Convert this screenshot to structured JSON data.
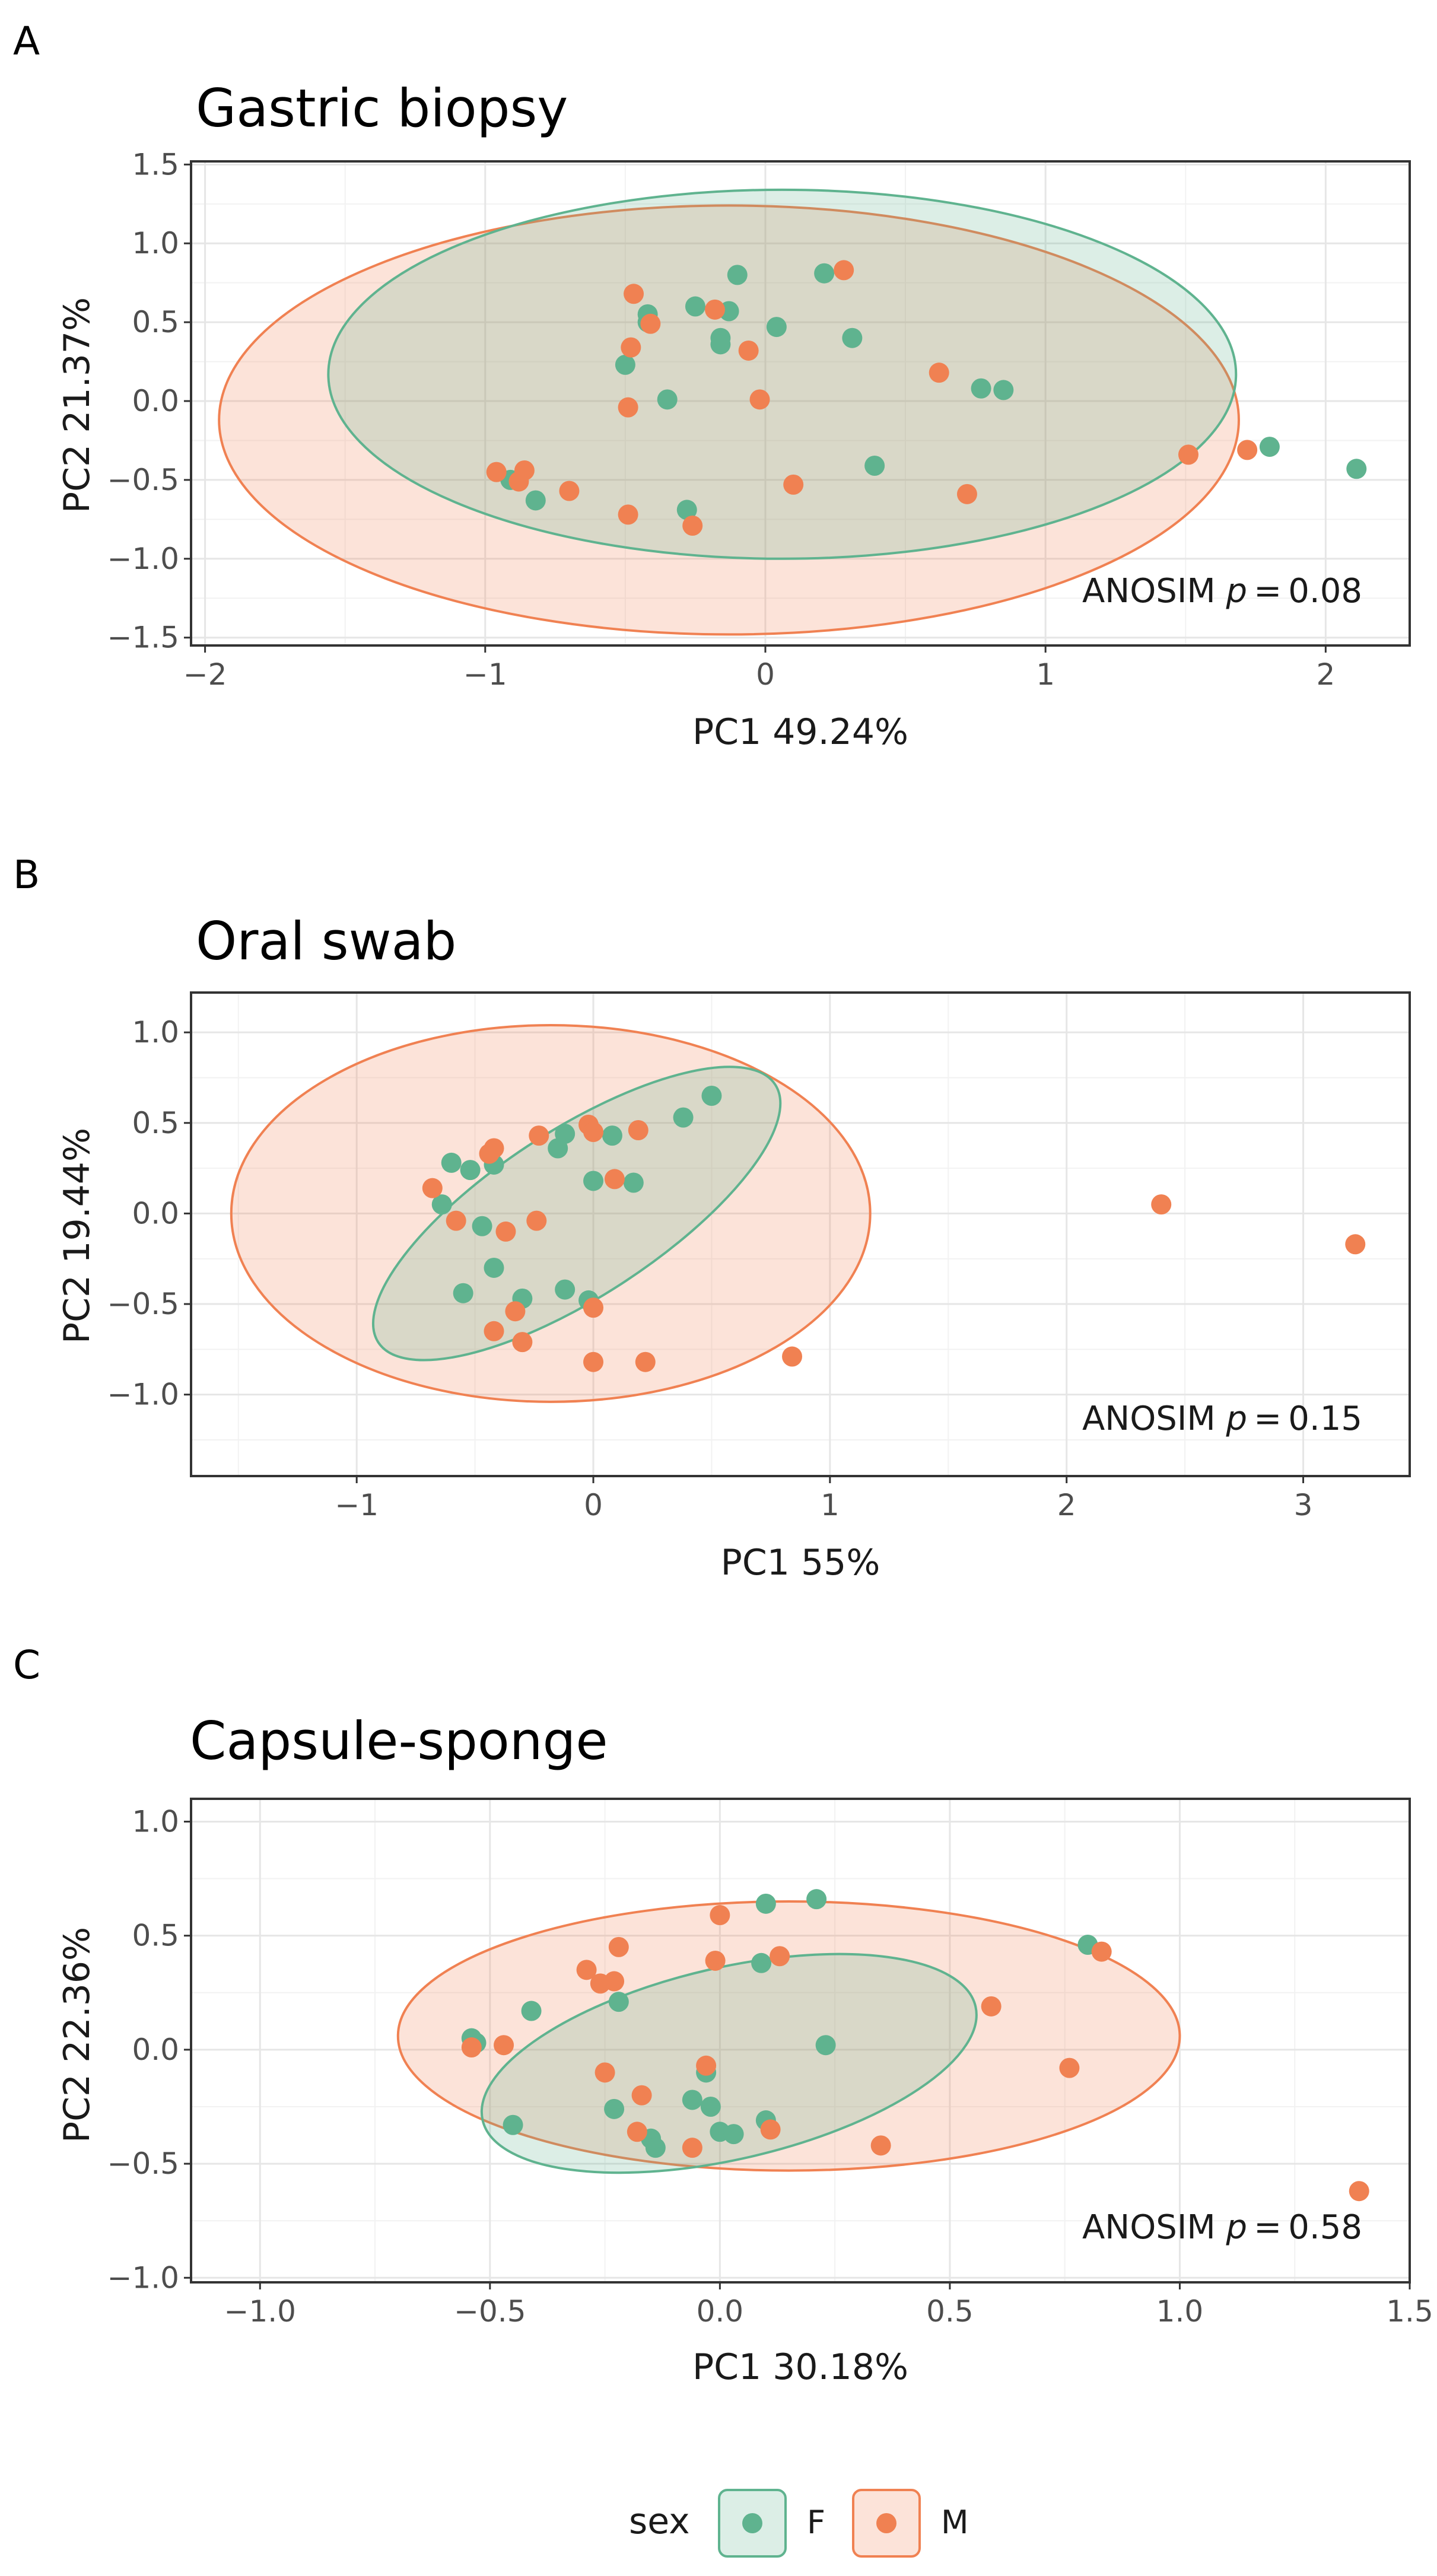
{
  "legend": {
    "title": "sex",
    "entries": [
      {
        "label": "F",
        "color": "#5fb38f"
      },
      {
        "label": "M",
        "color": "#f08152"
      }
    ]
  },
  "chart_data": [
    {
      "type": "scatter",
      "panel_letter": "A",
      "title": "Gastric biopsy",
      "xlabel": "PC1 49.24%",
      "ylabel": "PC2 21.37%",
      "xlim": [
        -2.05,
        2.3
      ],
      "ylim": [
        -1.55,
        1.52
      ],
      "xticks": [
        -2,
        -1,
        0,
        1,
        2
      ],
      "xtick_labels": [
        "−2",
        "−1",
        "0",
        "1",
        "2"
      ],
      "yticks": [
        -1.5,
        -1.0,
        -0.5,
        0.0,
        0.5,
        1.0,
        1.5
      ],
      "ytick_labels": [
        "−1.5",
        "−1.0",
        "−0.5",
        "0.0",
        "0.5",
        "1.0",
        "1.5"
      ],
      "annotation": {
        "prefix": "ANOSIM ",
        "p": "p",
        "suffix": " = 0.08"
      },
      "ellipses": [
        {
          "group": "M",
          "cx": -0.13,
          "cy": -0.12,
          "rx": 1.82,
          "ry": 1.36,
          "angle": 0
        },
        {
          "group": "F",
          "cx": 0.06,
          "cy": 0.17,
          "rx": 1.62,
          "ry": 1.17,
          "angle": 0
        }
      ],
      "series": [
        {
          "name": "F",
          "color": "#5fb38f",
          "points": [
            [
              -0.91,
              -0.5
            ],
            [
              -0.82,
              -0.63
            ],
            [
              -0.5,
              0.23
            ],
            [
              -0.42,
              0.55
            ],
            [
              -0.42,
              0.5
            ],
            [
              -0.35,
              0.01
            ],
            [
              -0.28,
              -0.69
            ],
            [
              -0.25,
              0.6
            ],
            [
              -0.16,
              0.4
            ],
            [
              -0.16,
              0.36
            ],
            [
              -0.13,
              0.57
            ],
            [
              -0.1,
              0.8
            ],
            [
              0.04,
              0.47
            ],
            [
              0.21,
              0.81
            ],
            [
              0.31,
              0.4
            ],
            [
              0.39,
              -0.41
            ],
            [
              0.77,
              0.08
            ],
            [
              0.85,
              0.07
            ],
            [
              1.8,
              -0.29
            ],
            [
              2.11,
              -0.43
            ]
          ]
        },
        {
          "name": "M",
          "color": "#f08152",
          "points": [
            [
              -0.96,
              -0.45
            ],
            [
              -0.88,
              -0.51
            ],
            [
              -0.86,
              -0.44
            ],
            [
              -0.7,
              -0.57
            ],
            [
              -0.49,
              -0.72
            ],
            [
              -0.49,
              -0.04
            ],
            [
              -0.48,
              0.34
            ],
            [
              -0.47,
              0.68
            ],
            [
              -0.41,
              0.49
            ],
            [
              -0.26,
              -0.79
            ],
            [
              -0.18,
              0.58
            ],
            [
              -0.06,
              0.32
            ],
            [
              -0.02,
              0.01
            ],
            [
              0.1,
              -0.53
            ],
            [
              0.28,
              0.83
            ],
            [
              0.62,
              0.18
            ],
            [
              0.72,
              -0.59
            ],
            [
              1.51,
              -0.34
            ],
            [
              1.72,
              -0.31
            ]
          ]
        }
      ]
    },
    {
      "type": "scatter",
      "panel_letter": "B",
      "title": "Oral swab",
      "xlabel": "PC1 55%",
      "ylabel": "PC2 19.44%",
      "xlim": [
        -1.7,
        3.45
      ],
      "ylim": [
        -1.45,
        1.22
      ],
      "xticks": [
        -1,
        0,
        1,
        2,
        3
      ],
      "xtick_labels": [
        "−1",
        "0",
        "1",
        "2",
        "3"
      ],
      "yticks": [
        -1.0,
        -0.5,
        0.0,
        0.5,
        1.0
      ],
      "ytick_labels": [
        "−1.0",
        "−0.5",
        "0.0",
        "0.5",
        "1.0"
      ],
      "annotation": {
        "prefix": "ANOSIM ",
        "p": "p",
        "suffix": " = 0.15"
      },
      "ellipses": [
        {
          "group": "M",
          "cx": -0.18,
          "cy": 0.0,
          "rx": 1.35,
          "ry": 1.04,
          "angle": 0
        },
        {
          "group": "F",
          "cx": -0.07,
          "cy": 0.0,
          "rx": 1.0,
          "ry": 0.46,
          "angle": 33
        }
      ],
      "series": [
        {
          "name": "F",
          "color": "#5fb38f",
          "points": [
            [
              -0.64,
              0.05
            ],
            [
              -0.6,
              0.28
            ],
            [
              -0.55,
              -0.44
            ],
            [
              -0.52,
              0.24
            ],
            [
              -0.47,
              -0.07
            ],
            [
              -0.42,
              0.27
            ],
            [
              -0.42,
              -0.3
            ],
            [
              -0.3,
              -0.47
            ],
            [
              -0.15,
              0.36
            ],
            [
              -0.12,
              0.44
            ],
            [
              -0.12,
              -0.42
            ],
            [
              -0.02,
              -0.48
            ],
            [
              0.0,
              0.18
            ],
            [
              0.08,
              0.43
            ],
            [
              0.17,
              0.17
            ],
            [
              0.38,
              0.53
            ],
            [
              0.5,
              0.65
            ]
          ]
        },
        {
          "name": "M",
          "color": "#f08152",
          "points": [
            [
              -0.68,
              0.14
            ],
            [
              -0.58,
              -0.04
            ],
            [
              -0.44,
              0.33
            ],
            [
              -0.42,
              0.36
            ],
            [
              -0.42,
              -0.65
            ],
            [
              -0.37,
              -0.1
            ],
            [
              -0.33,
              -0.54
            ],
            [
              -0.3,
              -0.71
            ],
            [
              -0.24,
              -0.04
            ],
            [
              -0.23,
              0.43
            ],
            [
              -0.02,
              0.49
            ],
            [
              0.0,
              -0.52
            ],
            [
              0.0,
              0.45
            ],
            [
              0.0,
              -0.82
            ],
            [
              0.09,
              0.19
            ],
            [
              0.19,
              0.46
            ],
            [
              0.22,
              -0.82
            ],
            [
              0.84,
              -0.79
            ],
            [
              2.4,
              0.05
            ],
            [
              3.22,
              -0.17
            ]
          ]
        }
      ]
    },
    {
      "type": "scatter",
      "panel_letter": "C",
      "title": "Capsule-sponge",
      "xlabel": "PC1 30.18%",
      "ylabel": "PC2 22.36%",
      "xlim": [
        -1.15,
        1.5
      ],
      "ylim": [
        -1.02,
        1.1
      ],
      "xticks": [
        -1.0,
        -0.5,
        0.0,
        0.5,
        1.0,
        1.5
      ],
      "xtick_labels": [
        "−1.0",
        "−0.5",
        "0.0",
        "0.5",
        "1.0",
        "1.5"
      ],
      "yticks": [
        -1.0,
        -0.5,
        0.0,
        0.5,
        1.0
      ],
      "ytick_labels": [
        "−1.0",
        "−0.5",
        "0.0",
        "0.5",
        "1.0"
      ],
      "annotation": {
        "prefix": "ANOSIM ",
        "p": "p",
        "suffix": " = 0.58"
      },
      "ellipses": [
        {
          "group": "M",
          "cx": 0.15,
          "cy": 0.06,
          "rx": 0.85,
          "ry": 0.59,
          "angle": 0
        },
        {
          "group": "F",
          "cx": 0.02,
          "cy": -0.06,
          "rx": 0.55,
          "ry": 0.42,
          "angle": 13
        }
      ],
      "series": [
        {
          "name": "F",
          "color": "#5fb38f",
          "points": [
            [
              -0.54,
              0.05
            ],
            [
              -0.53,
              0.03
            ],
            [
              -0.45,
              -0.33
            ],
            [
              -0.41,
              0.17
            ],
            [
              -0.23,
              -0.26
            ],
            [
              -0.22,
              0.21
            ],
            [
              -0.15,
              -0.39
            ],
            [
              -0.14,
              -0.43
            ],
            [
              -0.06,
              -0.22
            ],
            [
              -0.03,
              -0.1
            ],
            [
              -0.02,
              -0.25
            ],
            [
              0.0,
              -0.36
            ],
            [
              0.03,
              -0.37
            ],
            [
              0.09,
              0.38
            ],
            [
              0.1,
              0.64
            ],
            [
              0.1,
              -0.31
            ],
            [
              0.21,
              0.66
            ],
            [
              0.23,
              0.02
            ],
            [
              0.8,
              0.46
            ]
          ]
        },
        {
          "name": "M",
          "color": "#f08152",
          "points": [
            [
              -0.54,
              0.01
            ],
            [
              -0.47,
              0.02
            ],
            [
              -0.29,
              0.35
            ],
            [
              -0.26,
              0.29
            ],
            [
              -0.25,
              -0.1
            ],
            [
              -0.23,
              0.3
            ],
            [
              -0.22,
              0.45
            ],
            [
              -0.18,
              -0.36
            ],
            [
              -0.17,
              -0.2
            ],
            [
              -0.06,
              -0.43
            ],
            [
              -0.03,
              -0.07
            ],
            [
              -0.01,
              0.39
            ],
            [
              0.0,
              0.59
            ],
            [
              0.11,
              -0.35
            ],
            [
              0.13,
              0.41
            ],
            [
              0.35,
              -0.42
            ],
            [
              0.59,
              0.19
            ],
            [
              0.76,
              -0.08
            ],
            [
              0.83,
              0.43
            ],
            [
              1.39,
              -0.62
            ]
          ]
        }
      ]
    }
  ]
}
